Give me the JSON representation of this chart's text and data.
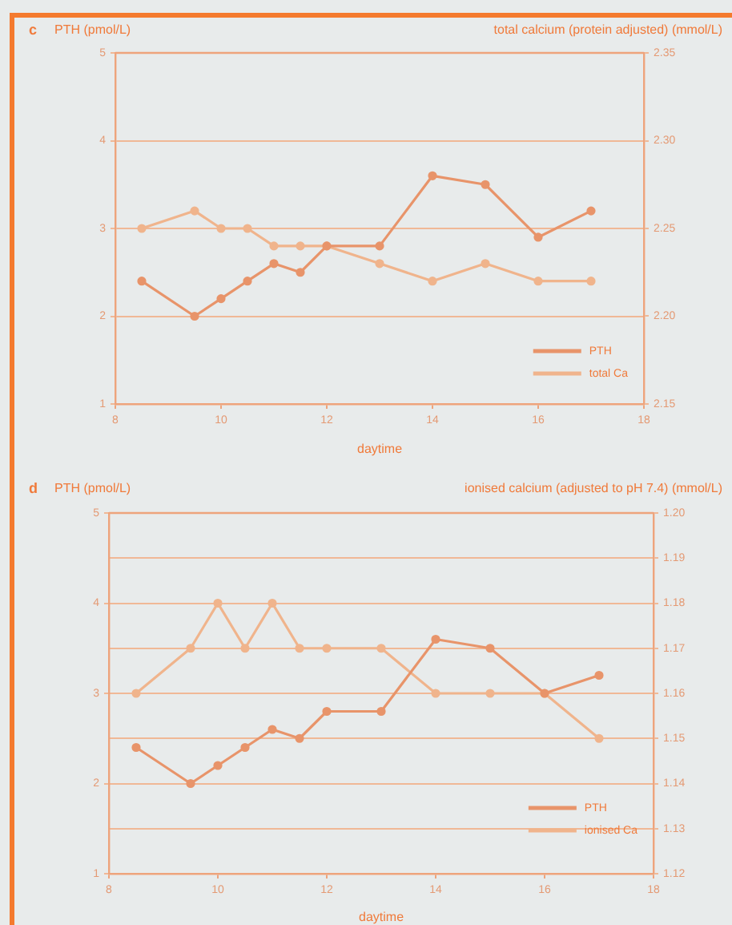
{
  "chart_data": [
    {
      "type": "line",
      "title": "c",
      "ylabel": "PTH (pmol/L)",
      "y2label": "total calcium (protein adjusted) (mmol/L)",
      "xlabel": "daytime",
      "x": [
        8.5,
        9.5,
        10,
        10.5,
        11,
        11.5,
        12,
        13,
        14,
        15,
        16,
        17
      ],
      "series": [
        {
          "name": "PTH",
          "color": "#e8946a",
          "values": [
            2.4,
            2.0,
            2.2,
            2.4,
            2.6,
            2.5,
            2.8,
            2.8,
            3.6,
            3.5,
            2.9,
            3.2
          ]
        },
        {
          "name": "total Ca",
          "color": "#f0b48c",
          "axis": "y2",
          "values": [
            2.25,
            2.26,
            2.25,
            2.25,
            2.24,
            2.24,
            2.24,
            2.23,
            2.22,
            2.23,
            2.22,
            2.22
          ]
        }
      ],
      "xlim": [
        8,
        18
      ],
      "xticks": [
        8,
        10,
        12,
        14,
        16,
        18
      ],
      "ylim": [
        1,
        5
      ],
      "yticks": [
        1,
        2,
        3,
        4,
        5
      ],
      "y2lim": [
        2.15,
        2.35
      ],
      "y2ticks": [
        2.15,
        {
          "value": 2.2,
          "label": "2.20"
        },
        2.25,
        {
          "value": 2.3,
          "label": "2.30"
        },
        2.35
      ],
      "grid": "y",
      "legend": "bottom right",
      "marker": "circle",
      "line_style": "solid"
    },
    {
      "type": "line",
      "title": "d",
      "ylabel": "PTH (pmol/L)",
      "y2label": "ionised calcium (adjusted to pH 7.4) (mmol/L)",
      "xlabel": "daytime",
      "x": [
        8.5,
        9.5,
        10,
        10.5,
        11,
        11.5,
        12,
        13,
        14,
        15,
        16,
        17
      ],
      "series": [
        {
          "name": "PTH",
          "color": "#e8946a",
          "values": [
            2.4,
            2.0,
            2.2,
            2.4,
            2.6,
            2.5,
            2.8,
            2.8,
            3.6,
            3.5,
            3.0,
            3.2
          ]
        },
        {
          "name": "ionised Ca",
          "color": "#f0b48c",
          "axis": "y2",
          "values": [
            1.16,
            1.17,
            1.18,
            1.17,
            1.18,
            1.17,
            1.17,
            1.17,
            1.16,
            1.16,
            1.16,
            1.15
          ]
        }
      ],
      "xlim": [
        8,
        18
      ],
      "xticks": [
        8,
        10,
        12,
        14,
        16,
        18
      ],
      "ylim": [
        1,
        5
      ],
      "yticks": [
        1,
        2,
        3,
        4,
        5
      ],
      "y2lim": [
        1.12,
        1.2
      ],
      "y2ticks": [
        1.12,
        1.13,
        1.14,
        1.15,
        1.16,
        1.17,
        1.18,
        1.19,
        {
          "value": 1.2,
          "label": "1.20"
        }
      ],
      "grid": "y2",
      "legend": "bottom right",
      "marker": "circle",
      "line_style": "solid"
    }
  ]
}
